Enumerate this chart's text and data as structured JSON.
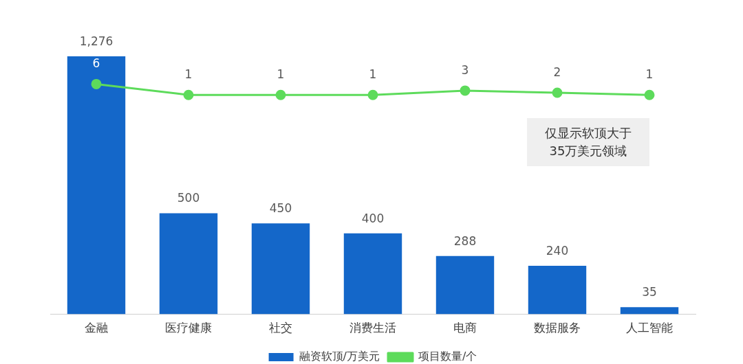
{
  "chart_data": {
    "type": "bar",
    "categories": [
      "金融",
      "医疗健康",
      "社交",
      "消费生活",
      "电商",
      "数据服务",
      "人工智能"
    ],
    "series": [
      {
        "name": "融资软顶/万美元",
        "color": "#1467c9",
        "values": [
          1276,
          500,
          450,
          400,
          288,
          240,
          35
        ],
        "value_labels": [
          "1,276",
          "500",
          "450",
          "400",
          "288",
          "240",
          "35"
        ]
      },
      {
        "name": "项目数量/个",
        "type": "line",
        "axis": "y2",
        "color": "#5ddb5b",
        "values": [
          6,
          1,
          1,
          1,
          3,
          2,
          1
        ],
        "value_labels": [
          "6",
          "1",
          "1",
          "1",
          "3",
          "2",
          "1"
        ]
      }
    ],
    "legend": "bottom",
    "marker": "circle",
    "line_style": "solid",
    "annotations": [
      "仅显示软顶大于\n35万美元领域"
    ]
  }
}
